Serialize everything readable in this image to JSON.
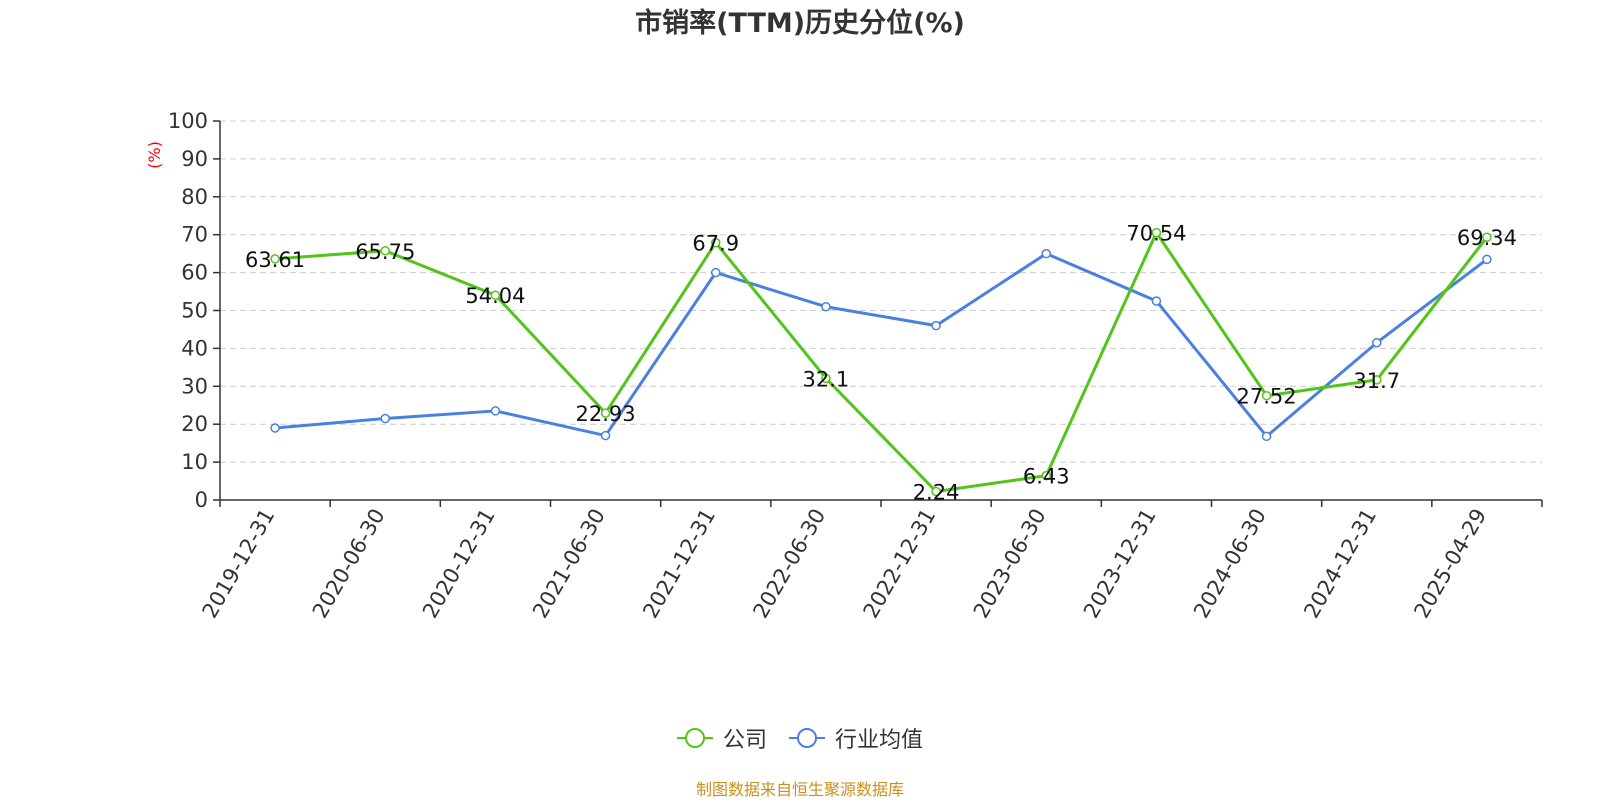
{
  "chart_data": {
    "type": "line",
    "title": "市销率(TTM)历史分位(%)",
    "ylabel": "(%)",
    "xlabel": "",
    "categories": [
      "2019-12-31",
      "2020-06-30",
      "2020-12-31",
      "2021-06-30",
      "2021-12-31",
      "2022-06-30",
      "2022-12-31",
      "2023-06-30",
      "2023-12-31",
      "2024-06-30",
      "2024-12-31",
      "2025-04-29"
    ],
    "ylim": [
      0,
      100
    ],
    "yticks": [
      0,
      10,
      20,
      30,
      40,
      50,
      60,
      70,
      80,
      90,
      100
    ],
    "grid": true,
    "legend_position": "bottom",
    "series": [
      {
        "name": "公司",
        "color": "#52c41a",
        "values": [
          63.61,
          65.75,
          54.04,
          22.93,
          67.9,
          32.1,
          2.24,
          6.43,
          70.54,
          27.52,
          31.7,
          69.34
        ],
        "labels": [
          "63.61",
          "65.75",
          "54.04",
          "22.93",
          "67.9",
          "32.1",
          "2.24",
          "6.43",
          "70.54",
          "27.52",
          "31.7",
          "69.34"
        ]
      },
      {
        "name": "行业均值",
        "color": "#4a80e0",
        "values": [
          19,
          21.5,
          23.5,
          17,
          60,
          51,
          46,
          65,
          52.5,
          16.8,
          41.5,
          63.5
        ]
      }
    ]
  },
  "source": "制图数据来自恒生聚源数据库"
}
